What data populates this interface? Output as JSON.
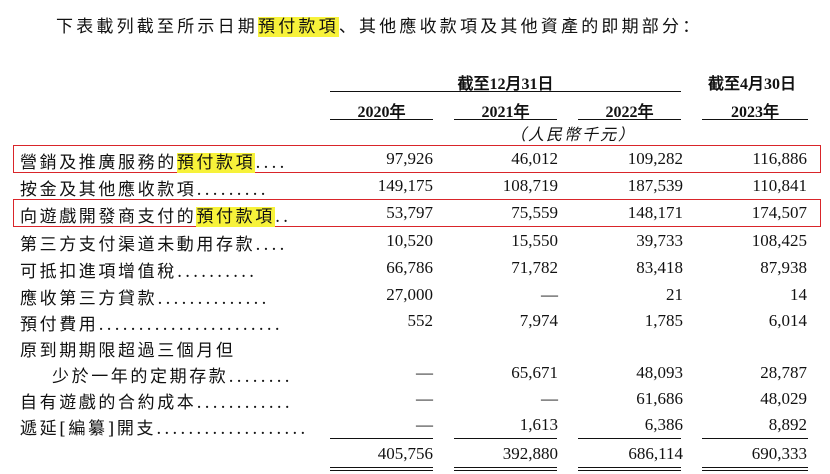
{
  "intro": {
    "before": "下表載列截至所示日期",
    "highlight": "預付款項",
    "after": "、其他應收款項及其他資產的即期部分："
  },
  "header": {
    "group_dec": "截至12月31日",
    "group_apr": "截至4月30日",
    "years": [
      "2020年",
      "2021年",
      "2022年",
      "2023年"
    ],
    "unit": "（人民幣千元）"
  },
  "rows": [
    {
      "label": "營銷及推廣服務的",
      "label_hl": "預付款項",
      "dots": "....",
      "values": [
        "97,926",
        "46,012",
        "109,282",
        "116,886"
      ]
    },
    {
      "label": "按金及其他應收款項",
      "dots": ".........",
      "values": [
        "149,175",
        "108,719",
        "187,539",
        "110,841"
      ]
    },
    {
      "label": "向遊戲開發商支付的",
      "label_hl": "預付款項",
      "dots": "..",
      "values": [
        "53,797",
        "75,559",
        "148,171",
        "174,507"
      ]
    },
    {
      "label": "第三方支付渠道未動用存款",
      "dots": "....",
      "values": [
        "10,520",
        "15,550",
        "39,733",
        "108,425"
      ]
    },
    {
      "label": "可抵扣進項增值稅",
      "dots": "..........",
      "values": [
        "66,786",
        "71,782",
        "83,418",
        "87,938"
      ]
    },
    {
      "label": "應收第三方貸款",
      "dots": "..............",
      "values": [
        "27,000",
        "—",
        "21",
        "14"
      ]
    },
    {
      "label": "預付費用",
      "dots": ".......................",
      "values": [
        "552",
        "7,974",
        "1,785",
        "6,014"
      ]
    },
    {
      "label": "原到期期限超過三個月但",
      "dots": "",
      "values": [
        "",
        "",
        "",
        ""
      ]
    },
    {
      "label": "少於一年的定期存款",
      "dots": "........",
      "values": [
        "—",
        "65,671",
        "48,093",
        "28,787"
      ],
      "indent": true
    },
    {
      "label": "自有遊戲的合約成本",
      "dots": "............",
      "values": [
        "—",
        "—",
        "61,686",
        "48,029"
      ]
    },
    {
      "label": "遞延[編纂]開支",
      "dots": "...................",
      "values": [
        "—",
        "1,613",
        "6,386",
        "8,892"
      ]
    }
  ],
  "totals": [
    "405,756",
    "392,880",
    "686,114",
    "690,333"
  ]
}
